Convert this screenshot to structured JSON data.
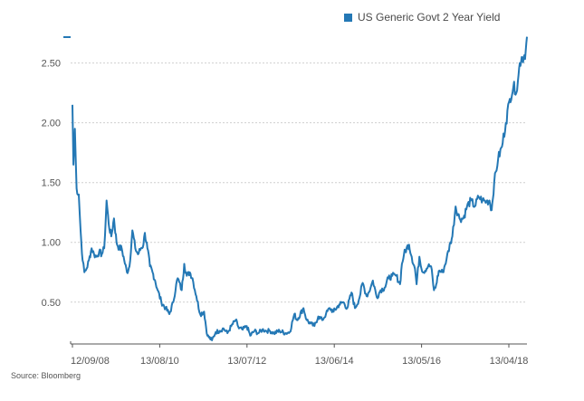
{
  "source": "Source: Bloomberg",
  "legend": {
    "label": "US Generic Govt 2 Year Yield"
  },
  "colors": {
    "series": "#2478b5",
    "grid": "#cfcfcf",
    "axis": "#555555"
  },
  "chart_data": {
    "type": "line",
    "title": "",
    "xlabel": "",
    "ylabel": "",
    "ylim": [
      0.15,
      2.8
    ],
    "yticks": [
      {
        "value": 0.5,
        "label": "0.50"
      },
      {
        "value": 1.0,
        "label": "1.00"
      },
      {
        "value": 1.5,
        "label": "1.50"
      },
      {
        "value": 2.0,
        "label": "2.00"
      },
      {
        "value": 2.5,
        "label": "2.50"
      }
    ],
    "xticks": [
      "12/09/08",
      "13/08/10",
      "13/07/12",
      "13/06/14",
      "13/05/16",
      "13/04/18"
    ],
    "grid": true,
    "legend_position": "top-right",
    "series": [
      {
        "name": "US Generic Govt 2 Year Yield",
        "x": [
          "2008-09-12",
          "2008-09-20",
          "2008-10-01",
          "2008-10-15",
          "2008-11-01",
          "2008-11-15",
          "2008-12-01",
          "2008-12-15",
          "2009-01-01",
          "2009-01-20",
          "2009-02-10",
          "2009-03-01",
          "2009-03-20",
          "2009-04-10",
          "2009-05-01",
          "2009-05-20",
          "2009-06-08",
          "2009-06-25",
          "2009-07-15",
          "2009-08-05",
          "2009-08-25",
          "2009-09-15",
          "2009-10-05",
          "2009-10-25",
          "2009-11-15",
          "2009-12-05",
          "2009-12-28",
          "2010-01-20",
          "2010-02-10",
          "2010-03-05",
          "2010-03-25",
          "2010-04-05",
          "2010-04-25",
          "2010-05-15",
          "2010-06-05",
          "2010-06-25",
          "2010-07-15",
          "2010-08-13",
          "2010-09-15",
          "2010-10-15",
          "2010-11-15",
          "2010-12-08",
          "2010-12-20",
          "2011-01-20",
          "2011-02-09",
          "2011-03-01",
          "2011-03-25",
          "2011-04-15",
          "2011-05-15",
          "2011-06-15",
          "2011-07-15",
          "2011-08-10",
          "2011-09-15",
          "2011-10-15",
          "2011-11-15",
          "2011-12-15",
          "2012-01-15",
          "2012-02-15",
          "2012-03-20",
          "2012-04-15",
          "2012-05-15",
          "2012-06-15",
          "2012-07-13",
          "2012-08-15",
          "2012-09-15",
          "2012-10-15",
          "2012-11-15",
          "2012-12-15",
          "2013-01-15",
          "2013-03-01",
          "2013-04-15",
          "2013-05-20",
          "2013-06-25",
          "2013-07-15",
          "2013-09-05",
          "2013-09-30",
          "2013-10-30",
          "2013-11-30",
          "2013-12-30",
          "2014-01-30",
          "2014-03-01",
          "2014-03-30",
          "2014-04-30",
          "2014-06-13",
          "2014-07-15",
          "2014-08-15",
          "2014-09-18",
          "2014-10-15",
          "2014-11-15",
          "2014-12-15",
          "2015-01-15",
          "2015-02-15",
          "2015-03-05",
          "2015-04-05",
          "2015-05-05",
          "2015-06-05",
          "2015-07-05",
          "2015-08-05",
          "2015-09-05",
          "2015-10-05",
          "2015-10-20",
          "2015-11-05",
          "2015-11-25",
          "2015-12-15",
          "2016-01-05",
          "2016-01-30",
          "2016-02-12",
          "2016-03-05",
          "2016-04-01",
          "2016-05-13",
          "2016-06-05",
          "2016-06-28",
          "2016-07-10",
          "2016-08-05",
          "2016-09-05",
          "2016-10-05",
          "2016-11-05",
          "2016-11-20",
          "2016-12-15",
          "2017-01-15",
          "2017-02-15",
          "2017-03-15",
          "2017-04-15",
          "2017-05-15",
          "2017-06-15",
          "2017-07-15",
          "2017-08-15",
          "2017-09-08",
          "2017-09-25",
          "2017-10-15",
          "2017-11-15",
          "2017-12-15",
          "2018-01-15",
          "2018-02-15",
          "2018-03-15",
          "2018-04-13",
          "2018-04-25",
          "2018-05-05",
          "2018-05-20",
          "2018-06-05",
          "2018-06-20",
          "2018-06-30"
        ],
        "y": [
          2.15,
          1.65,
          1.95,
          1.45,
          1.4,
          1.1,
          0.85,
          0.75,
          0.78,
          0.85,
          0.95,
          0.9,
          0.88,
          0.92,
          0.9,
          0.95,
          1.35,
          1.15,
          1.05,
          1.2,
          1.0,
          0.95,
          0.95,
          0.85,
          0.75,
          0.8,
          1.1,
          0.95,
          0.9,
          0.95,
          0.98,
          1.08,
          0.95,
          0.8,
          0.75,
          0.68,
          0.6,
          0.5,
          0.45,
          0.4,
          0.5,
          0.65,
          0.7,
          0.6,
          0.82,
          0.72,
          0.75,
          0.7,
          0.55,
          0.4,
          0.42,
          0.22,
          0.18,
          0.25,
          0.26,
          0.28,
          0.24,
          0.3,
          0.35,
          0.28,
          0.27,
          0.3,
          0.22,
          0.26,
          0.24,
          0.27,
          0.26,
          0.26,
          0.24,
          0.26,
          0.24,
          0.25,
          0.4,
          0.35,
          0.45,
          0.35,
          0.32,
          0.3,
          0.38,
          0.35,
          0.4,
          0.45,
          0.42,
          0.48,
          0.5,
          0.45,
          0.58,
          0.45,
          0.52,
          0.66,
          0.55,
          0.62,
          0.68,
          0.54,
          0.6,
          0.62,
          0.7,
          0.72,
          0.72,
          0.65,
          0.82,
          0.9,
          0.95,
          0.98,
          0.88,
          0.78,
          0.65,
          0.88,
          0.75,
          0.8,
          0.8,
          0.6,
          0.62,
          0.76,
          0.75,
          0.86,
          1.0,
          1.05,
          1.3,
          1.2,
          1.2,
          1.3,
          1.35,
          1.3,
          1.38,
          1.35,
          1.34,
          1.35,
          1.27,
          1.5,
          1.7,
          1.8,
          2.0,
          2.2,
          2.3,
          2.27,
          2.4,
          2.5,
          2.55,
          2.55,
          2.6,
          2.72
        ]
      }
    ]
  }
}
